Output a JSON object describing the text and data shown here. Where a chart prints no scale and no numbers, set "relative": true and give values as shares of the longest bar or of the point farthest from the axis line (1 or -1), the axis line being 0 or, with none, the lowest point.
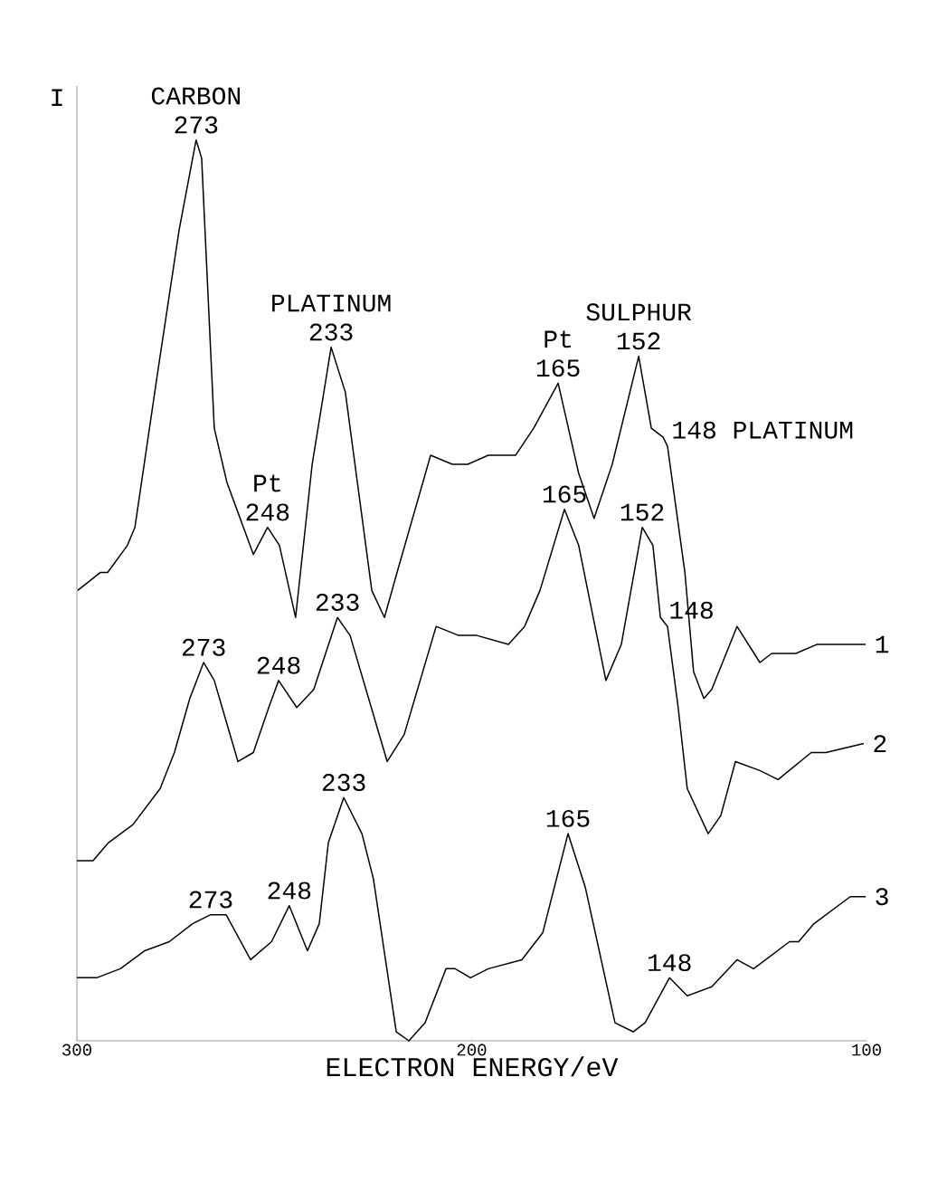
{
  "chart_data": {
    "type": "line",
    "relative": true,
    "xlabel": "ELECTRON ENERGY/eV",
    "ylabel": "I",
    "xlim": [
      300,
      100
    ],
    "xticks": [
      300,
      200,
      100
    ],
    "tick_labels": "x",
    "x": [
      299.8,
      294.0,
      292.2,
      287.2,
      285.3,
      279.6,
      274.1,
      269.8,
      268.4,
      265.2,
      262.0,
      255.3,
      251.7,
      248.7,
      244.6,
      240.4,
      235.6,
      232.0,
      225.3,
      222.1,
      218.9,
      210.4,
      204.9,
      201.0,
      195.8,
      188.9,
      184.3,
      178.1,
      172.9,
      169.0,
      164.4,
      157.7,
      154.5,
      151.5,
      150.4,
      146.0,
      143.8,
      141.2,
      139.2,
      132.8,
      127.0,
      124.0,
      117.9,
      112.6,
      106.4,
      100.2
    ],
    "series": [
      {
        "name": "1",
        "color": "#000000",
        "values": [
          0.5,
          0.52,
          0.52,
          0.55,
          0.57,
          0.74,
          0.9,
          1.0,
          0.98,
          0.68,
          0.62,
          0.54,
          0.57,
          0.55,
          0.47,
          0.64,
          0.77,
          0.72,
          0.5,
          0.47,
          0.52,
          0.65,
          0.64,
          0.64,
          0.65,
          0.65,
          0.68,
          0.73,
          0.63,
          0.58,
          0.64,
          0.76,
          0.68,
          0.67,
          0.66,
          0.52,
          0.41,
          0.38,
          0.39,
          0.46,
          0.42,
          0.43,
          0.43,
          0.44,
          0.44,
          0.44
        ]
      },
      {
        "name": "2",
        "color": "#000000",
        "x": [
          300.0,
          295.9,
          292.0,
          285.8,
          278.9,
          275.3,
          271.4,
          267.9,
          265.2,
          259.2,
          255.3,
          251.4,
          248.9,
          244.3,
          240.0,
          234.0,
          230.8,
          221.4,
          217.1,
          209.0,
          203.3,
          198.7,
          190.7,
          186.6,
          182.7,
          176.5,
          172.9,
          166.0,
          162.1,
          156.8,
          154.1,
          152.2,
          150.4,
          147.7,
          145.4,
          140.1,
          136.9,
          133.2,
          127.0,
          122.4,
          114.0,
          110.3,
          100.7
        ],
        "values": [
          0.2,
          0.2,
          0.22,
          0.24,
          0.28,
          0.32,
          0.38,
          0.42,
          0.4,
          0.31,
          0.32,
          0.37,
          0.4,
          0.37,
          0.39,
          0.47,
          0.45,
          0.31,
          0.34,
          0.46,
          0.45,
          0.45,
          0.44,
          0.46,
          0.5,
          0.59,
          0.55,
          0.4,
          0.44,
          0.57,
          0.55,
          0.47,
          0.46,
          0.37,
          0.28,
          0.23,
          0.25,
          0.31,
          0.3,
          0.29,
          0.32,
          0.32,
          0.33
        ]
      },
      {
        "name": "3",
        "color": "#000000",
        "x": [
          300.0,
          295.0,
          289.0,
          282.8,
          276.6,
          270.7,
          266.1,
          262.2,
          256.0,
          250.7,
          246.2,
          241.6,
          238.6,
          236.3,
          232.4,
          227.8,
          224.9,
          219.1,
          215.9,
          211.8,
          206.5,
          204.2,
          200.3,
          195.8,
          187.3,
          182.0,
          175.6,
          171.2,
          163.7,
          159.1,
          156.1,
          149.9,
          145.4,
          139.2,
          132.8,
          128.6,
          119.5,
          117.2,
          113.3,
          104.1,
          100.2
        ],
        "values": [
          0.07,
          0.07,
          0.08,
          0.1,
          0.11,
          0.13,
          0.14,
          0.14,
          0.09,
          0.11,
          0.15,
          0.1,
          0.13,
          0.22,
          0.27,
          0.23,
          0.18,
          0.01,
          0.0,
          0.02,
          0.08,
          0.08,
          0.07,
          0.08,
          0.09,
          0.12,
          0.23,
          0.17,
          0.02,
          0.01,
          0.02,
          0.07,
          0.05,
          0.06,
          0.09,
          0.08,
          0.11,
          0.11,
          0.13,
          0.16,
          0.16
        ]
      }
    ],
    "annotations": [
      {
        "text": "273",
        "x": 269.8,
        "y": 1.0
      },
      {
        "text": "CARBON",
        "x": 269.8,
        "y": 1.0
      },
      {
        "text": "248",
        "x": 251.7,
        "y": 0.57
      },
      {
        "text": "Pt",
        "x": 251.7,
        "y": 0.57
      },
      {
        "text": "233",
        "x": 235.6,
        "y": 0.77
      },
      {
        "text": "PLATINUM",
        "x": 235.6,
        "y": 0.77
      },
      {
        "text": "165",
        "x": 178.1,
        "y": 0.73
      },
      {
        "text": "Pt",
        "x": 178.1,
        "y": 0.73
      },
      {
        "text": "152",
        "x": 157.7,
        "y": 0.76
      },
      {
        "text": "SULPHUR",
        "x": 157.7,
        "y": 0.76
      },
      {
        "text": "148 PLATINUM",
        "x": 151.5,
        "y": 0.67
      },
      {
        "text": "273",
        "x": 267.9,
        "y": 0.42
      },
      {
        "text": "248",
        "x": 248.9,
        "y": 0.4
      },
      {
        "text": "233",
        "x": 234.0,
        "y": 0.47
      },
      {
        "text": "165",
        "x": 176.5,
        "y": 0.59
      },
      {
        "text": "152",
        "x": 156.8,
        "y": 0.57
      },
      {
        "text": "148",
        "x": 152.2,
        "y": 0.47
      },
      {
        "text": "273",
        "x": 266.1,
        "y": 0.14
      },
      {
        "text": "248",
        "x": 246.2,
        "y": 0.15
      },
      {
        "text": "233",
        "x": 232.4,
        "y": 0.27
      },
      {
        "text": "165",
        "x": 175.6,
        "y": 0.23
      },
      {
        "text": "148",
        "x": 149.9,
        "y": 0.07
      }
    ]
  }
}
